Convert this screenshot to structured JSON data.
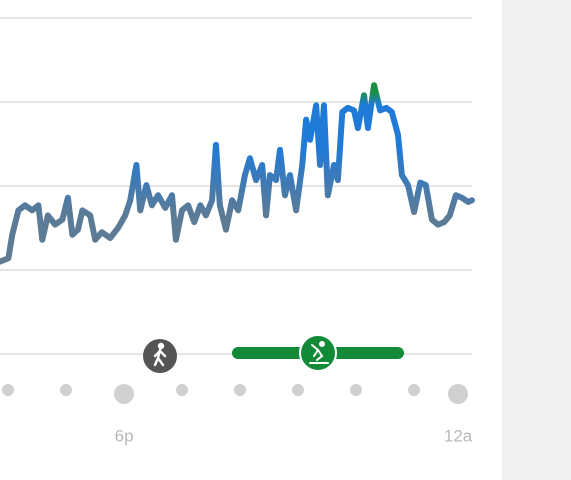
{
  "chart_data": {
    "type": "line",
    "x": [
      -2.23,
      -2.08,
      -2.01,
      -1.9,
      -1.78,
      -1.65,
      -1.54,
      -1.47,
      -1.37,
      -1.24,
      -1.11,
      -1.01,
      -0.93,
      -0.83,
      -0.75,
      -0.61,
      -0.52,
      -0.4,
      -0.25,
      -0.11,
      0.02,
      0.11,
      0.22,
      0.29,
      0.4,
      0.5,
      0.61,
      0.74,
      0.86,
      0.93,
      1.04,
      1.15,
      1.26,
      1.37,
      1.47,
      1.58,
      1.65,
      1.72,
      1.83,
      1.94,
      2.05,
      2.17,
      2.26,
      2.37,
      2.48,
      2.55,
      2.62,
      2.73,
      2.8,
      2.89,
      2.98,
      3.09,
      3.2,
      3.27,
      3.34,
      3.45,
      3.52,
      3.59,
      3.66,
      3.77,
      3.84,
      3.92,
      4.02,
      4.13,
      4.2,
      4.31,
      4.38,
      4.49,
      4.6,
      4.71,
      4.81,
      4.92,
      4.99,
      5.1,
      5.21,
      5.32,
      5.42,
      5.53,
      5.64,
      5.75,
      5.85,
      5.96,
      6.07,
      6.18,
      6.25
    ],
    "values": [
      1.1,
      1.14,
      1.42,
      1.71,
      1.77,
      1.71,
      1.77,
      1.36,
      1.65,
      1.54,
      1.6,
      1.86,
      1.42,
      1.48,
      1.71,
      1.65,
      1.36,
      1.45,
      1.38,
      1.5,
      1.65,
      1.83,
      2.25,
      1.71,
      2.01,
      1.77,
      1.89,
      1.74,
      1.89,
      1.36,
      1.71,
      1.77,
      1.57,
      1.77,
      1.65,
      1.83,
      2.49,
      1.77,
      1.48,
      1.83,
      1.71,
      2.13,
      2.33,
      2.07,
      2.25,
      1.65,
      2.13,
      2.07,
      2.43,
      1.89,
      2.13,
      1.71,
      2.25,
      2.79,
      2.55,
      2.96,
      2.25,
      2.96,
      1.89,
      2.25,
      2.07,
      2.88,
      2.93,
      2.9,
      2.69,
      3.08,
      2.69,
      3.2,
      2.9,
      2.93,
      2.88,
      2.61,
      2.13,
      2.01,
      1.69,
      2.04,
      2.01,
      1.6,
      1.54,
      1.57,
      1.65,
      1.89,
      1.86,
      1.81,
      1.83
    ],
    "xlim": [
      -2.23,
      6.25
    ],
    "xticks": [
      {
        "value": 0,
        "label": "6p"
      },
      {
        "value": 6,
        "label": "12a"
      }
    ],
    "ylim": [
      0,
      4
    ],
    "yticks": [
      0,
      1,
      2,
      3,
      4
    ],
    "grid": true
  }
}
